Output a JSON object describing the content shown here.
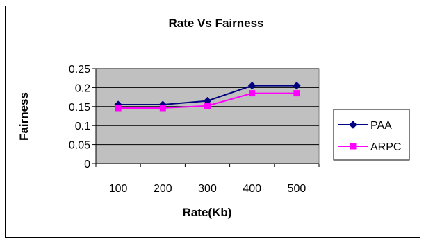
{
  "chart_data": {
    "type": "line",
    "title": "Rate Vs Fairness",
    "xlabel": "Rate(Kb)",
    "ylabel": "Fairness",
    "categories": [
      "100",
      "200",
      "300",
      "400",
      "500"
    ],
    "ylim": [
      0,
      0.25
    ],
    "yticks": [
      "0",
      "0.05",
      "0.1",
      "0.15",
      "0.2",
      "0.25"
    ],
    "grid": true,
    "legend_position": "right",
    "plot_background": "#c0c0c0",
    "series": [
      {
        "name": "PAA",
        "values": [
          0.155,
          0.155,
          0.165,
          0.205,
          0.205
        ],
        "color": "#000080",
        "marker": "diamond"
      },
      {
        "name": "ARPC",
        "values": [
          0.146,
          0.146,
          0.152,
          0.185,
          0.185
        ],
        "color": "#ff00ff",
        "marker": "square"
      }
    ]
  }
}
